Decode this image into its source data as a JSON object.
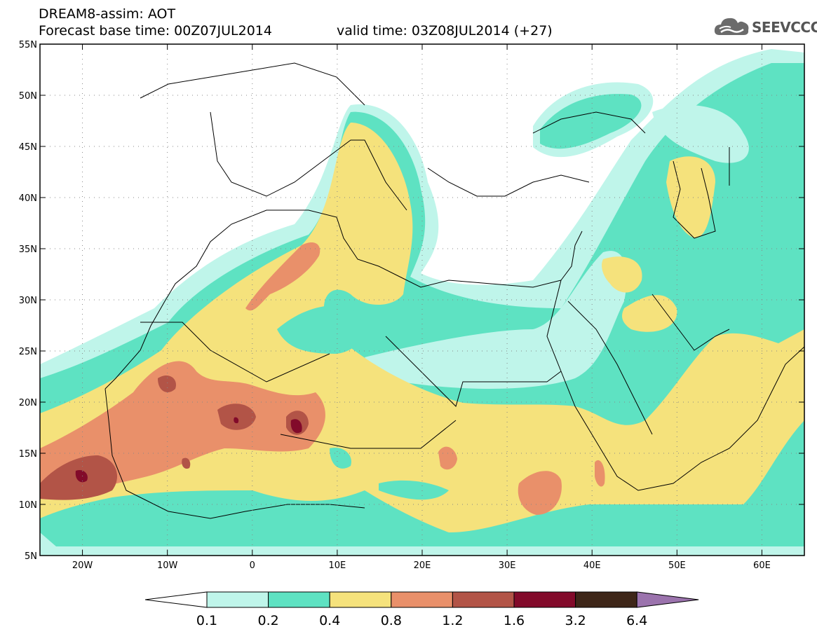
{
  "header": {
    "line1": "DREAM8-assim: AOT",
    "base_time": "Forecast base time: 00Z07JUL2014",
    "valid_time": "valid time: 03Z08JUL2014 (+27)"
  },
  "logo": {
    "text": "SEEVCCC",
    "icon": "cloud-icon"
  },
  "map": {
    "lon_range": [
      -25,
      65
    ],
    "lat_range": [
      5,
      55
    ],
    "lat_ticks": [
      {
        "value": 55,
        "label": "55N"
      },
      {
        "value": 50,
        "label": "50N"
      },
      {
        "value": 45,
        "label": "45N"
      },
      {
        "value": 40,
        "label": "40N"
      },
      {
        "value": 35,
        "label": "35N"
      },
      {
        "value": 30,
        "label": "30N"
      },
      {
        "value": 25,
        "label": "25N"
      },
      {
        "value": 20,
        "label": "20N"
      },
      {
        "value": 15,
        "label": "15N"
      },
      {
        "value": 10,
        "label": "10N"
      },
      {
        "value": 5,
        "label": "5N"
      }
    ],
    "lon_ticks": [
      {
        "value": -20,
        "label": "20W"
      },
      {
        "value": -10,
        "label": "10W"
      },
      {
        "value": 0,
        "label": "0"
      },
      {
        "value": 10,
        "label": "10E"
      },
      {
        "value": 20,
        "label": "20E"
      },
      {
        "value": 30,
        "label": "30E"
      },
      {
        "value": 40,
        "label": "40E"
      },
      {
        "value": 50,
        "label": "50E"
      },
      {
        "value": 60,
        "label": "60E"
      }
    ],
    "grid": "dotted",
    "variable": "AOT"
  },
  "colorbar": {
    "levels": [
      "0.1",
      "0.2",
      "0.4",
      "0.8",
      "1.2",
      "1.6",
      "3.2",
      "6.4"
    ],
    "colors": [
      "#ffffff",
      "#bff5ea",
      "#5ee2c2",
      "#f5e27c",
      "#e9906a",
      "#b25447",
      "#820a2a",
      "#3e2618",
      "#9b73ad"
    ]
  }
}
